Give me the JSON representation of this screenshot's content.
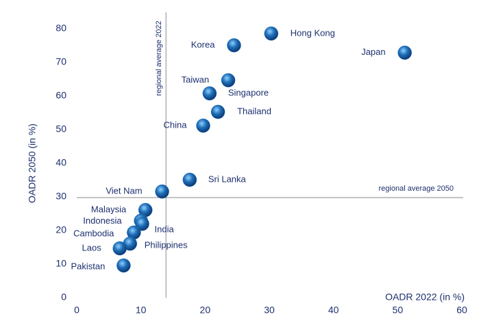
{
  "chart_data": {
    "type": "scatter",
    "x_label": "OADR 2022 (in %)",
    "y_label": "OADR 2050 (in %)",
    "xlim": [
      0,
      60
    ],
    "ylim": [
      0,
      80
    ],
    "xticks": [
      0,
      10,
      20,
      30,
      40,
      50,
      60
    ],
    "yticks": [
      0,
      10,
      20,
      30,
      40,
      50,
      60,
      70,
      80
    ],
    "color": "#1f6fb8",
    "labels": [
      "Hong Kong",
      "Korea",
      "Japan",
      "Taiwan",
      "Singapore",
      "Thailand",
      "China",
      "Sri Lanka",
      "Viet Nam",
      "Malaysia",
      "Indonesia",
      "India",
      "Cambodia",
      "Philippines",
      "Laos",
      "Pakistan"
    ],
    "x": [
      30.3,
      24.5,
      51.1,
      23.6,
      20.7,
      22.0,
      19.7,
      17.6,
      13.3,
      10.7,
      10.0,
      10.2,
      8.9,
      8.3,
      6.7,
      7.3
    ],
    "y": [
      78.6,
      75.1,
      72.9,
      64.7,
      60.8,
      55.3,
      51.2,
      35.1,
      31.6,
      26.1,
      22.9,
      22.0,
      19.4,
      16.1,
      14.7,
      9.6
    ],
    "reference_lines": [
      {
        "axis": "x",
        "value": 13.9,
        "label": "regional average 2022"
      },
      {
        "axis": "y",
        "value": 29.8,
        "label": "regional average 2050"
      }
    ]
  }
}
